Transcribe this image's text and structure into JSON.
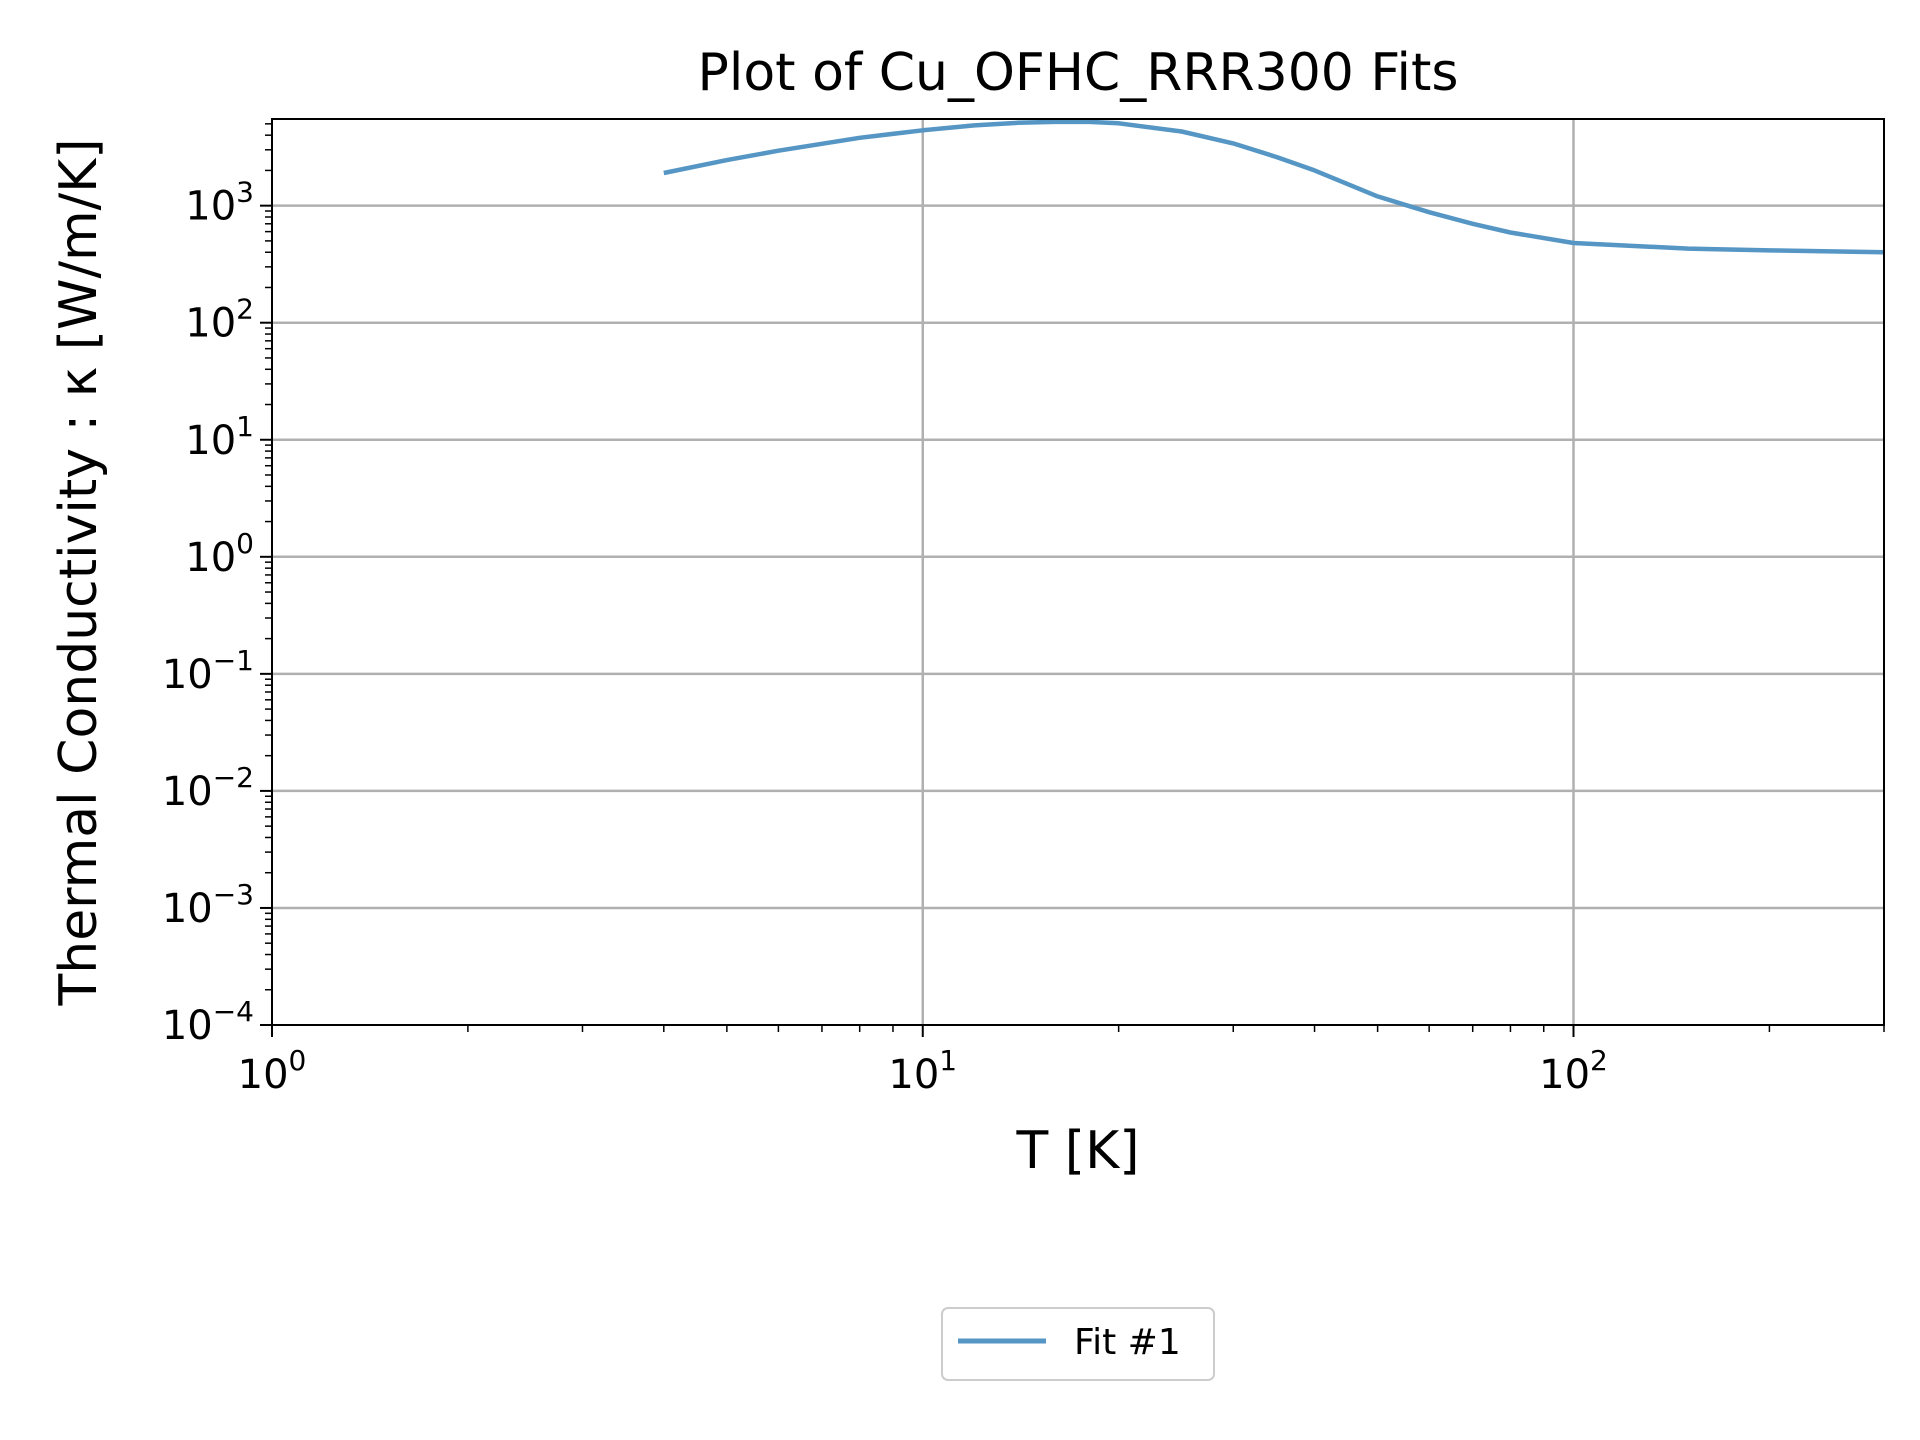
{
  "chart_data": {
    "type": "line",
    "title": "Plot of Cu_OFHC_RRR300 Fits",
    "xlabel": "T [K]",
    "ylabel": "Thermal Conductivity : κ [W/m/K]",
    "xscale": "log",
    "yscale": "log",
    "xlim": [
      1,
      300
    ],
    "ylim": [
      0.0001,
      5500
    ],
    "grid": true,
    "legend_position": "bottom-center",
    "x_ticks": [
      {
        "value": 1,
        "base": "10",
        "exp": "0"
      },
      {
        "value": 10,
        "base": "10",
        "exp": "1"
      },
      {
        "value": 100,
        "base": "10",
        "exp": "2"
      }
    ],
    "y_ticks": [
      {
        "value": 0.0001,
        "base": "10",
        "exp": "−4"
      },
      {
        "value": 0.001,
        "base": "10",
        "exp": "−3"
      },
      {
        "value": 0.01,
        "base": "10",
        "exp": "−2"
      },
      {
        "value": 0.1,
        "base": "10",
        "exp": "−1"
      },
      {
        "value": 1,
        "base": "10",
        "exp": "0"
      },
      {
        "value": 10,
        "base": "10",
        "exp": "1"
      },
      {
        "value": 100,
        "base": "10",
        "exp": "2"
      },
      {
        "value": 1000,
        "base": "10",
        "exp": "3"
      }
    ],
    "series": [
      {
        "name": "Fit #1",
        "color": "#5596c4",
        "x": [
          4,
          5,
          6,
          8,
          10,
          12,
          14,
          16,
          18,
          20,
          25,
          30,
          35,
          40,
          50,
          60,
          70,
          80,
          100,
          150,
          200,
          300
        ],
        "y": [
          1900,
          2450,
          2950,
          3800,
          4400,
          4850,
          5100,
          5200,
          5200,
          5050,
          4300,
          3400,
          2600,
          2000,
          1200,
          880,
          700,
          590,
          480,
          430,
          415,
          400
        ]
      }
    ]
  }
}
